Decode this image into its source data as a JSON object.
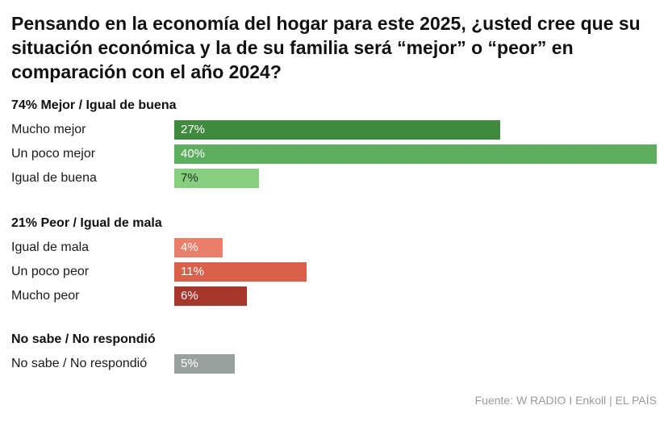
{
  "title": "Pensando en la economía del hogar para este 2025, ¿usted cree que su situación económica y la de su familia será “mejor” o “peor” en comparación con el año 2024?",
  "source": "Fuente: W RADIO I Enkoll | EL PAÍS",
  "chart_data": {
    "type": "bar",
    "orientation": "horizontal",
    "xlim": [
      0,
      40
    ],
    "groups": [
      {
        "title": "74% Mejor / Igual de buena",
        "rows": [
          {
            "label": "Mucho mejor",
            "value": 27,
            "value_label": "27%",
            "color": "#3f8a3f",
            "text_color": "#ffffff"
          },
          {
            "label": "Un poco mejor",
            "value": 40,
            "value_label": "40%",
            "color": "#5fad5f",
            "text_color": "#ffffff"
          },
          {
            "label": "Igual de buena",
            "value": 7,
            "value_label": "7%",
            "color": "#85cf7e",
            "text_color": "#2a2a2a"
          }
        ]
      },
      {
        "title": "21% Peor / Igual de mala",
        "rows": [
          {
            "label": "Igual de mala",
            "value": 4,
            "value_label": "4%",
            "color": "#ea7f6b",
            "text_color": "#ffffff"
          },
          {
            "label": "Un poco peor",
            "value": 11,
            "value_label": "11%",
            "color": "#d9604b",
            "text_color": "#ffffff"
          },
          {
            "label": "Mucho peor",
            "value": 6,
            "value_label": "6%",
            "color": "#a8352c",
            "text_color": "#ffffff"
          }
        ]
      },
      {
        "title": "No sabe / No respondió",
        "rows": [
          {
            "label": "No sabe / No respondió",
            "value": 5,
            "value_label": "5%",
            "color": "#99a19e",
            "text_color": "#ffffff"
          }
        ]
      }
    ]
  }
}
